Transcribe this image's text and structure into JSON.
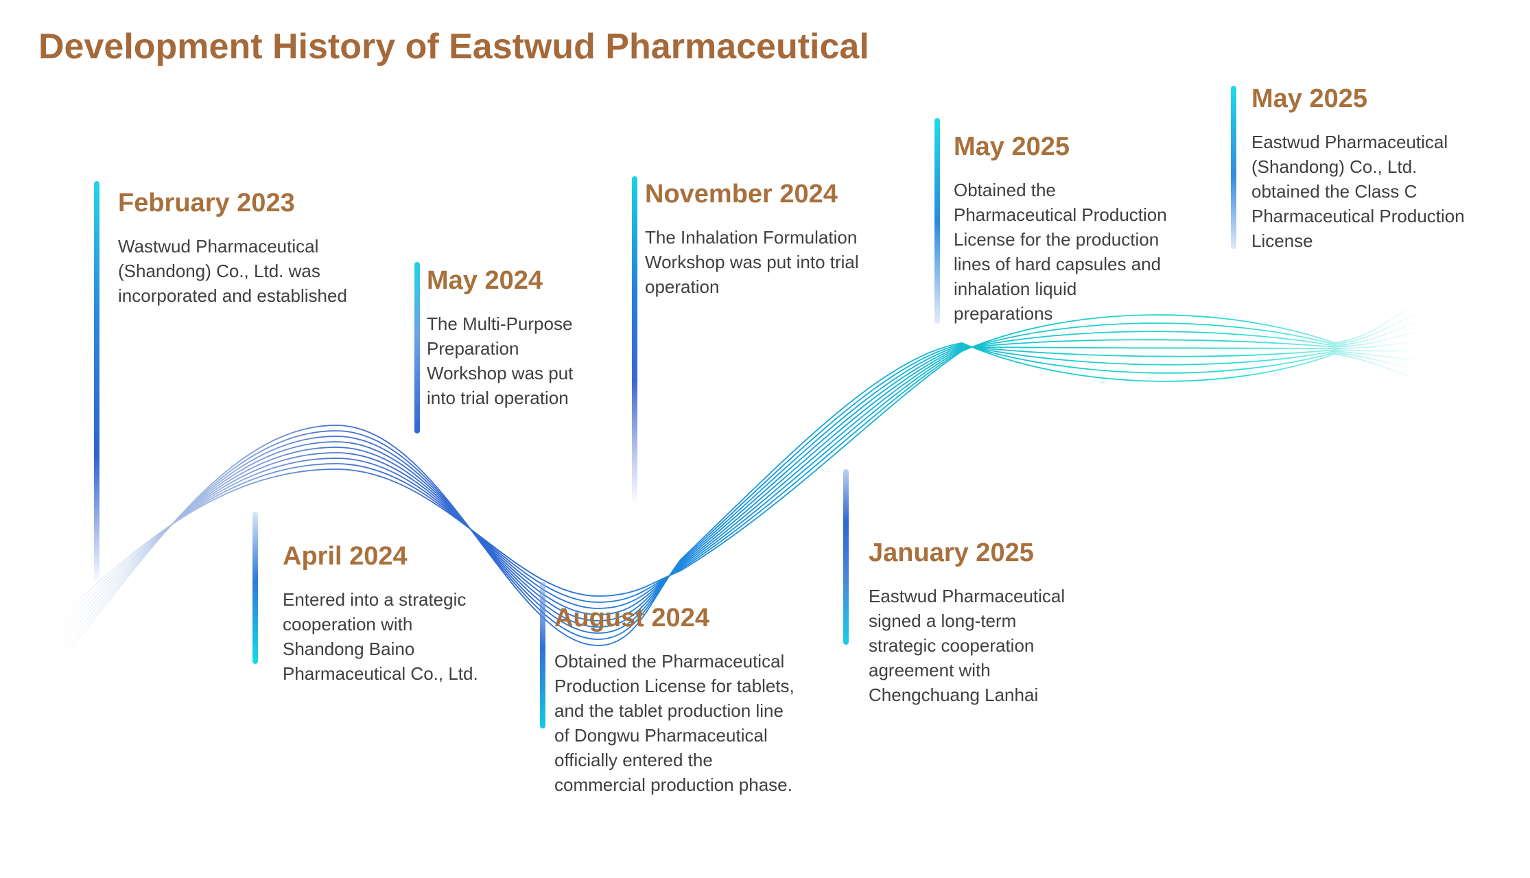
{
  "title": "Development History of Eastwud Pharmaceutical",
  "milestones": [
    {
      "id": "february-2023",
      "date": "February 2023",
      "description": "Wastwud Pharmaceutical (Shandong) Co., Ltd. was incorporated and established"
    },
    {
      "id": "april-2024",
      "date": "April 2024",
      "description": "Entered into a strategic cooperation with Shandong Baino Pharmaceutical Co., Ltd."
    },
    {
      "id": "may-2024",
      "date": "May 2024",
      "description": "The Multi-Purpose Preparation Workshop was put into trial operation"
    },
    {
      "id": "august-2024",
      "date": "August 2024",
      "description": "Obtained the Pharmaceutical Production License for tablets, and the tablet production line of Dongwu Pharmaceutical officially entered the commercial production phase."
    },
    {
      "id": "november-2024",
      "date": "November 2024",
      "description": "The Inhalation Formulation Workshop was put into trial operation"
    },
    {
      "id": "january-2025",
      "date": "January 2025",
      "description": "Eastwud Pharmaceutical signed a long-term strategic cooperation agreement with Chengchuang Lanhai"
    },
    {
      "id": "may-2025-capsules",
      "date": "May 2025",
      "description": "Obtained the Pharmaceutical Production License for the production lines of hard capsules and inhalation liquid preparations"
    },
    {
      "id": "may-2025-class-c",
      "date": "May 2025",
      "description": "Eastwud Pharmaceutical (Shandong) Co., Ltd. obtained the Class C Pharmaceutical Production License"
    }
  ],
  "colors": {
    "title_text": "#a5693a",
    "date_heading": "#a8703c",
    "body_text": "#3f3f3f",
    "wave_blue": "#2d68d4",
    "wave_cyan": "#1fd3cd",
    "bar_cyan": "#1fdbea",
    "bar_blue": "#2f6fd6"
  }
}
